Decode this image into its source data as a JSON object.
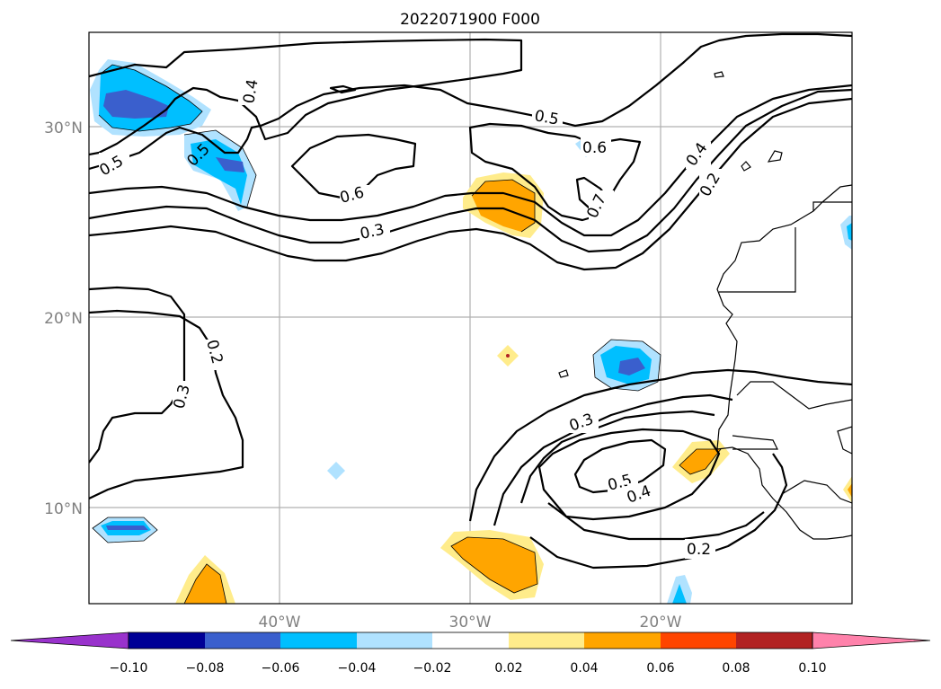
{
  "title": "2022071900 F000",
  "lat_labels": [
    "30°N",
    "20°N",
    "10°N"
  ],
  "lon_labels": [
    "40°W",
    "30°W",
    "20°W"
  ],
  "contour_labels": [
    "0.4",
    "0.5",
    "0.5",
    "0.6",
    "0.5",
    "0.6",
    "0.7",
    "0.4",
    "0.2",
    "0.3",
    "0.2",
    "0.3",
    "0.3",
    "0.5",
    "0.4",
    "0.2"
  ],
  "colorbar": {
    "ticks": [
      "−0.10",
      "−0.08",
      "−0.06",
      "−0.04",
      "−0.02",
      "0.02",
      "0.04",
      "0.06",
      "0.08",
      "0.10"
    ],
    "colors": [
      "#9932cc",
      "#000096",
      "#3a5fcd",
      "#00bfff",
      "#b0e2ff",
      "#ffffff",
      "#ffec8b",
      "#ffa500",
      "#ff4500",
      "#b22222",
      "#ff82ab"
    ]
  }
}
